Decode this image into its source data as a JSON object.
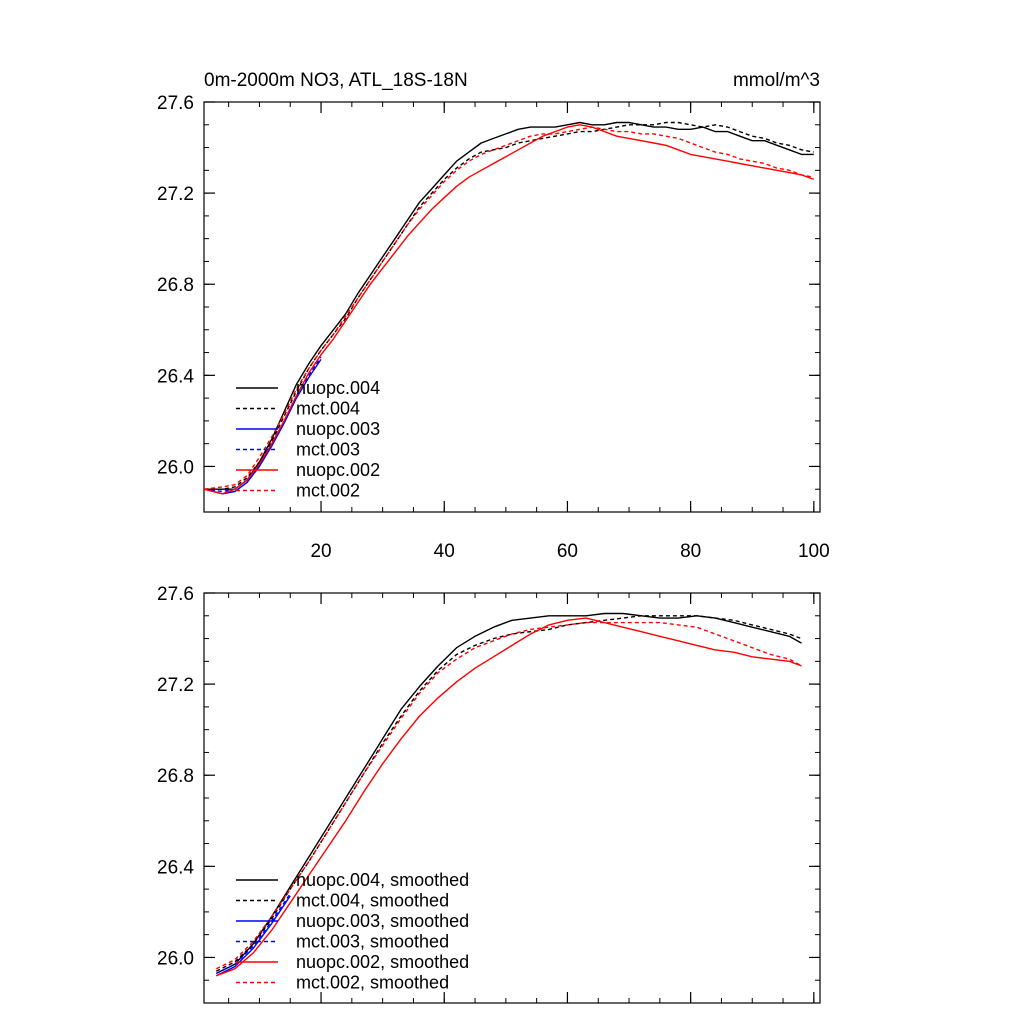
{
  "header": {
    "title": "0m-2000m NO3, ATL_18S-18N",
    "units": "mmol/m^3"
  },
  "chart_data": [
    {
      "type": "line",
      "title": "0m-2000m NO3, ATL_18S-18N",
      "units_label": "mmol/m^3",
      "xlim": [
        1,
        101
      ],
      "ylim": [
        25.8,
        27.6
      ],
      "x_ticks": [
        "20",
        "40",
        "60",
        "80",
        "100"
      ],
      "y_ticks": [
        "26.0",
        "26.4",
        "26.8",
        "27.2",
        "27.6"
      ],
      "legend_position": "lower-left",
      "series": [
        {
          "name": "nuopc.004",
          "color": "#000000",
          "dash": "solid",
          "x": [
            1,
            4,
            6,
            8,
            10,
            12,
            14,
            16,
            18,
            20,
            22,
            24,
            26,
            28,
            30,
            32,
            34,
            36,
            38,
            40,
            42,
            44,
            46,
            48,
            50,
            52,
            54,
            56,
            58,
            60,
            62,
            64,
            66,
            68,
            70,
            72,
            74,
            76,
            78,
            80,
            82,
            84,
            86,
            88,
            90,
            92,
            94,
            96,
            98,
            100
          ],
          "y": [
            25.9,
            25.9,
            25.9,
            25.94,
            26.02,
            26.12,
            26.24,
            26.36,
            26.45,
            26.53,
            26.6,
            26.67,
            26.76,
            26.84,
            26.92,
            27.0,
            27.08,
            27.16,
            27.22,
            27.28,
            27.34,
            27.38,
            27.42,
            27.44,
            27.46,
            27.48,
            27.49,
            27.49,
            27.49,
            27.5,
            27.51,
            27.5,
            27.5,
            27.51,
            27.51,
            27.5,
            27.49,
            27.49,
            27.48,
            27.48,
            27.49,
            27.47,
            27.47,
            27.45,
            27.43,
            27.43,
            27.41,
            27.39,
            27.37,
            27.37
          ]
        },
        {
          "name": "mct.004",
          "color": "#000000",
          "dash": "dashed",
          "x": [
            1,
            4,
            6,
            8,
            10,
            12,
            14,
            16,
            18,
            20,
            22,
            24,
            26,
            28,
            30,
            32,
            34,
            36,
            38,
            40,
            42,
            44,
            46,
            48,
            50,
            52,
            54,
            56,
            58,
            60,
            62,
            64,
            66,
            68,
            70,
            72,
            74,
            76,
            78,
            80,
            82,
            84,
            86,
            88,
            90,
            92,
            94,
            96,
            98,
            100
          ],
          "y": [
            25.9,
            25.9,
            25.91,
            25.95,
            26.02,
            26.11,
            26.22,
            26.33,
            26.43,
            26.51,
            26.58,
            26.65,
            26.74,
            26.82,
            26.9,
            26.98,
            27.06,
            27.14,
            27.2,
            27.26,
            27.31,
            27.35,
            27.38,
            27.39,
            27.4,
            27.42,
            27.43,
            27.44,
            27.45,
            27.46,
            27.47,
            27.47,
            27.48,
            27.49,
            27.5,
            27.5,
            27.5,
            27.51,
            27.51,
            27.5,
            27.49,
            27.5,
            27.49,
            27.47,
            27.45,
            27.44,
            27.42,
            27.41,
            27.39,
            27.38
          ]
        },
        {
          "name": "nuopc.003",
          "color": "#0000ff",
          "dash": "solid",
          "x": [
            1,
            4,
            6,
            8,
            10,
            12,
            14,
            16,
            18,
            20
          ],
          "y": [
            25.9,
            25.88,
            25.89,
            25.93,
            26.0,
            26.09,
            26.19,
            26.3,
            26.39,
            26.47
          ]
        },
        {
          "name": "mct.003",
          "color": "#0000ff",
          "dash": "dashed",
          "x": [
            1,
            4,
            6,
            8,
            10,
            12,
            14,
            16,
            18,
            20
          ],
          "y": [
            25.9,
            25.89,
            25.9,
            25.94,
            26.01,
            26.1,
            26.2,
            26.31,
            26.4,
            26.48
          ]
        },
        {
          "name": "nuopc.002",
          "color": "#ff0000",
          "dash": "solid",
          "x": [
            1,
            4,
            6,
            8,
            10,
            12,
            14,
            16,
            18,
            20,
            22,
            24,
            26,
            28,
            30,
            32,
            34,
            36,
            38,
            40,
            42,
            44,
            46,
            48,
            50,
            52,
            54,
            56,
            58,
            60,
            62,
            64,
            66,
            68,
            70,
            72,
            74,
            76,
            78,
            80,
            82,
            84,
            86,
            88,
            90,
            92,
            94,
            96,
            98,
            100
          ],
          "y": [
            25.9,
            25.88,
            25.9,
            25.94,
            26.01,
            26.1,
            26.2,
            26.31,
            26.41,
            26.49,
            26.56,
            26.64,
            26.72,
            26.8,
            26.87,
            26.94,
            27.01,
            27.07,
            27.13,
            27.18,
            27.23,
            27.27,
            27.3,
            27.33,
            27.36,
            27.39,
            27.42,
            27.45,
            27.47,
            27.49,
            27.5,
            27.49,
            27.47,
            27.45,
            27.44,
            27.43,
            27.42,
            27.41,
            27.39,
            27.37,
            27.36,
            27.35,
            27.34,
            27.33,
            27.32,
            27.31,
            27.3,
            27.29,
            27.28,
            27.26
          ]
        },
        {
          "name": "mct.002",
          "color": "#ff0000",
          "dash": "dashed",
          "x": [
            1,
            4,
            6,
            8,
            10,
            12,
            14,
            16,
            18,
            20,
            22,
            24,
            26,
            28,
            30,
            32,
            34,
            36,
            38,
            40,
            42,
            44,
            46,
            48,
            50,
            52,
            54,
            56,
            58,
            60,
            62,
            64,
            66,
            68,
            70,
            72,
            74,
            76,
            78,
            80,
            82,
            84,
            86,
            88,
            90,
            92,
            94,
            96,
            98,
            100
          ],
          "y": [
            25.9,
            25.91,
            25.92,
            25.96,
            26.04,
            26.13,
            26.23,
            26.34,
            26.43,
            26.51,
            26.58,
            26.66,
            26.74,
            26.82,
            26.9,
            26.98,
            27.06,
            27.13,
            27.19,
            27.25,
            27.3,
            27.34,
            27.37,
            27.39,
            27.41,
            27.43,
            27.45,
            27.46,
            27.46,
            27.47,
            27.48,
            27.49,
            27.48,
            27.47,
            27.47,
            27.46,
            27.46,
            27.45,
            27.44,
            27.42,
            27.4,
            27.38,
            27.37,
            27.35,
            27.34,
            27.33,
            27.31,
            27.3,
            27.28,
            27.27
          ]
        }
      ]
    },
    {
      "type": "line",
      "xlim": [
        1,
        101
      ],
      "ylim": [
        25.8,
        27.6
      ],
      "x_ticks": [],
      "y_ticks": [
        "26.0",
        "26.4",
        "26.8",
        "27.2",
        "27.6"
      ],
      "legend_position": "lower-left",
      "series": [
        {
          "name": "nuopc.004, smoothed",
          "color": "#000000",
          "dash": "solid",
          "x": [
            3,
            6,
            9,
            12,
            15,
            18,
            21,
            24,
            27,
            30,
            33,
            36,
            39,
            42,
            45,
            48,
            51,
            54,
            57,
            60,
            63,
            66,
            69,
            72,
            75,
            78,
            81,
            84,
            87,
            90,
            93,
            96,
            98
          ],
          "y": [
            25.93,
            25.97,
            26.06,
            26.18,
            26.31,
            26.44,
            26.57,
            26.7,
            26.83,
            26.96,
            27.09,
            27.19,
            27.28,
            27.36,
            27.41,
            27.45,
            27.48,
            27.49,
            27.5,
            27.5,
            27.5,
            27.51,
            27.51,
            27.5,
            27.49,
            27.49,
            27.5,
            27.49,
            27.47,
            27.45,
            27.43,
            27.41,
            27.38
          ]
        },
        {
          "name": "mct.004, smoothed",
          "color": "#000000",
          "dash": "dashed",
          "x": [
            3,
            6,
            9,
            12,
            15,
            18,
            21,
            24,
            27,
            30,
            33,
            36,
            39,
            42,
            45,
            48,
            51,
            54,
            57,
            60,
            63,
            66,
            69,
            72,
            75,
            78,
            81,
            84,
            87,
            90,
            93,
            96,
            98
          ],
          "y": [
            25.94,
            25.98,
            26.06,
            26.17,
            26.3,
            26.42,
            26.55,
            26.68,
            26.81,
            26.94,
            27.06,
            27.17,
            27.26,
            27.33,
            27.37,
            27.4,
            27.42,
            27.43,
            27.44,
            27.46,
            27.47,
            27.48,
            27.49,
            27.5,
            27.5,
            27.5,
            27.5,
            27.49,
            27.48,
            27.46,
            27.44,
            27.42,
            27.4
          ]
        },
        {
          "name": "nuopc.003, smoothed",
          "color": "#0000ff",
          "dash": "solid",
          "x": [
            3,
            6,
            9,
            12,
            15
          ],
          "y": [
            25.92,
            25.96,
            26.04,
            26.15,
            26.27
          ]
        },
        {
          "name": "mct.003, smoothed",
          "color": "#0000ff",
          "dash": "dashed",
          "x": [
            3,
            6,
            9,
            12,
            15
          ],
          "y": [
            25.93,
            25.97,
            26.05,
            26.16,
            26.28
          ]
        },
        {
          "name": "nuopc.002, smoothed",
          "color": "#ff0000",
          "dash": "solid",
          "x": [
            3,
            6,
            9,
            12,
            15,
            18,
            21,
            24,
            27,
            30,
            33,
            36,
            39,
            42,
            45,
            48,
            51,
            54,
            57,
            60,
            63,
            66,
            69,
            72,
            75,
            78,
            81,
            84,
            87,
            90,
            93,
            96,
            98
          ],
          "y": [
            25.92,
            25.95,
            26.02,
            26.12,
            26.24,
            26.36,
            26.48,
            26.6,
            26.73,
            26.85,
            26.96,
            27.06,
            27.14,
            27.21,
            27.27,
            27.32,
            27.37,
            27.42,
            27.46,
            27.48,
            27.49,
            27.47,
            27.45,
            27.43,
            27.41,
            27.39,
            27.37,
            27.35,
            27.34,
            27.32,
            27.31,
            27.3,
            27.28
          ]
        },
        {
          "name": "mct.002, smoothed",
          "color": "#ff0000",
          "dash": "dashed",
          "x": [
            3,
            6,
            9,
            12,
            15,
            18,
            21,
            24,
            27,
            30,
            33,
            36,
            39,
            42,
            45,
            48,
            51,
            54,
            57,
            60,
            63,
            66,
            69,
            72,
            75,
            78,
            81,
            84,
            87,
            90,
            93,
            96,
            98
          ],
          "y": [
            25.95,
            25.99,
            26.07,
            26.18,
            26.3,
            26.42,
            26.55,
            26.68,
            26.81,
            26.93,
            27.05,
            27.16,
            27.25,
            27.31,
            27.36,
            27.39,
            27.42,
            27.44,
            27.45,
            27.46,
            27.47,
            27.47,
            27.47,
            27.47,
            27.47,
            27.46,
            27.45,
            27.42,
            27.39,
            27.36,
            27.33,
            27.31,
            27.28
          ]
        }
      ]
    }
  ]
}
